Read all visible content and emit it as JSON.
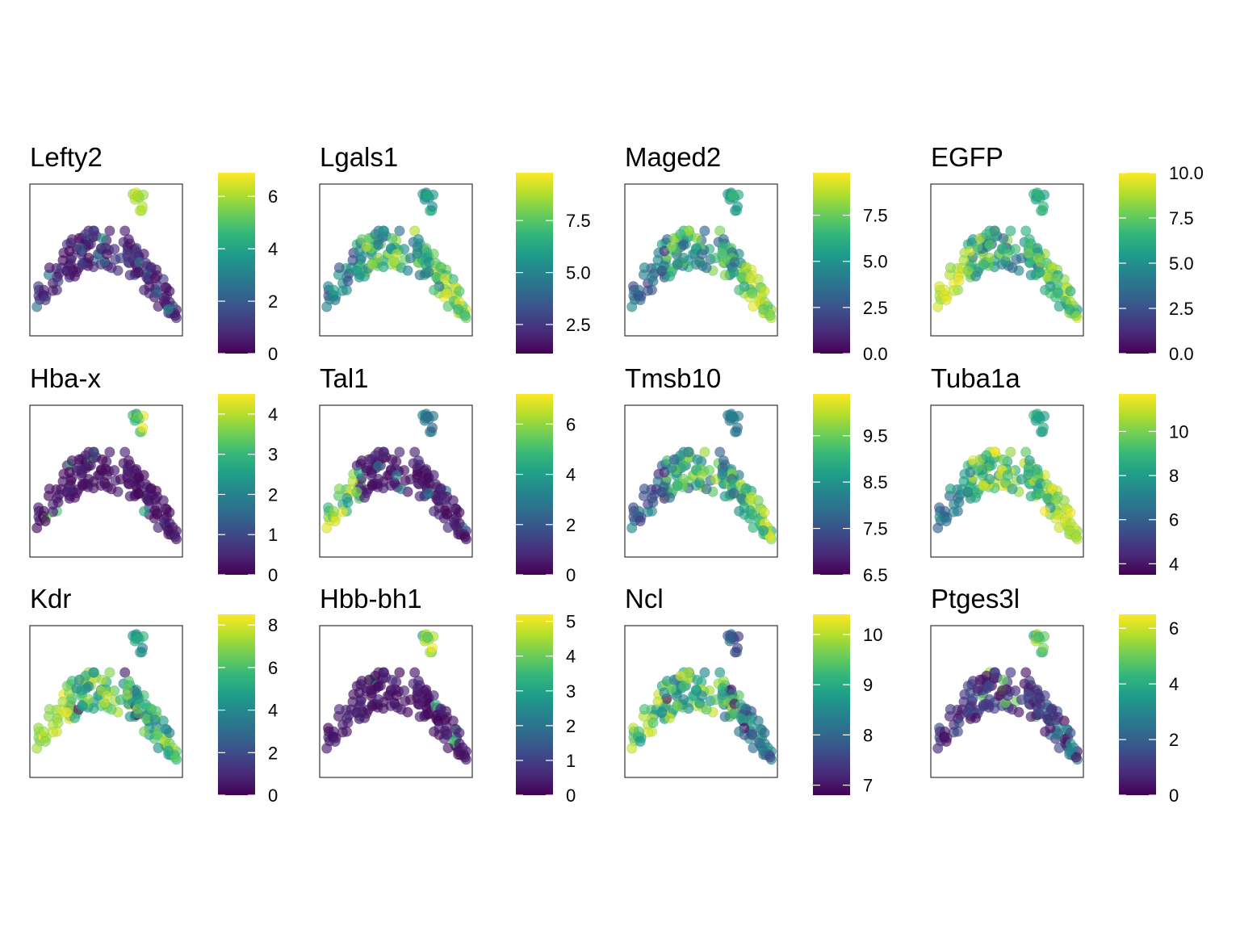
{
  "figure": {
    "colormap": "viridis",
    "colormap_stops": [
      "#440154",
      "#482878",
      "#3e4989",
      "#31688e",
      "#26828e",
      "#1f9e89",
      "#35b779",
      "#6ece58",
      "#b5de2b",
      "#fde725"
    ],
    "point_alpha": 0.65,
    "frame_color": "#333333",
    "axis_ticks_shown": false
  },
  "chart_data": [
    {
      "type": "scatter",
      "title": "Lefty2",
      "colorbar": {
        "range": [
          0,
          6.9
        ],
        "ticks": [
          0,
          2,
          4,
          6
        ],
        "tick_labels": [
          "0",
          "2",
          "4",
          "6"
        ]
      },
      "pattern": "lefty2"
    },
    {
      "type": "scatter",
      "title": "Lgals1",
      "colorbar": {
        "range": [
          1.1,
          9.8
        ],
        "ticks": [
          2.5,
          5.0,
          7.5
        ],
        "tick_labels": [
          "2.5",
          "5.0",
          "7.5"
        ]
      },
      "pattern": "lgals1"
    },
    {
      "type": "scatter",
      "title": "Maged2",
      "colorbar": {
        "range": [
          0,
          9.8
        ],
        "ticks": [
          0,
          2.5,
          5.0,
          7.5
        ],
        "tick_labels": [
          "0.0",
          "2.5",
          "5.0",
          "7.5"
        ]
      },
      "pattern": "maged2"
    },
    {
      "type": "scatter",
      "title": "EGFP",
      "colorbar": {
        "range": [
          0,
          10.0
        ],
        "ticks": [
          0,
          2.5,
          5.0,
          7.5,
          10.0
        ],
        "tick_labels": [
          "0.0",
          "2.5",
          "5.0",
          "7.5",
          "10.0"
        ]
      },
      "pattern": "egfp"
    },
    {
      "type": "scatter",
      "title": "Hba-x",
      "colorbar": {
        "range": [
          0,
          4.5
        ],
        "ticks": [
          0,
          1,
          2,
          3,
          4
        ],
        "tick_labels": [
          "0",
          "1",
          "2",
          "3",
          "4"
        ]
      },
      "pattern": "hbax"
    },
    {
      "type": "scatter",
      "title": "Tal1",
      "colorbar": {
        "range": [
          0,
          7.2
        ],
        "ticks": [
          0,
          2,
          4,
          6
        ],
        "tick_labels": [
          "0",
          "2",
          "4",
          "6"
        ]
      },
      "pattern": "tal1"
    },
    {
      "type": "scatter",
      "title": "Tmsb10",
      "colorbar": {
        "range": [
          6.5,
          10.4
        ],
        "ticks": [
          6.5,
          7.5,
          8.5,
          9.5
        ],
        "tick_labels": [
          "6.5",
          "7.5",
          "8.5",
          "9.5"
        ]
      },
      "pattern": "tmsb10"
    },
    {
      "type": "scatter",
      "title": "Tuba1a",
      "colorbar": {
        "range": [
          3.5,
          11.7
        ],
        "ticks": [
          4,
          6,
          8,
          10
        ],
        "tick_labels": [
          "4",
          "6",
          "8",
          "10"
        ]
      },
      "pattern": "tuba1a"
    },
    {
      "type": "scatter",
      "title": "Kdr",
      "colorbar": {
        "range": [
          0,
          8.5
        ],
        "ticks": [
          0,
          2,
          4,
          6,
          8
        ],
        "tick_labels": [
          "0",
          "2",
          "4",
          "6",
          "8"
        ]
      },
      "pattern": "kdr"
    },
    {
      "type": "scatter",
      "title": "Hbb-bh1",
      "colorbar": {
        "range": [
          0,
          5.2
        ],
        "ticks": [
          0,
          1,
          2,
          3,
          4,
          5
        ],
        "tick_labels": [
          "0",
          "1",
          "2",
          "3",
          "4",
          "5"
        ]
      },
      "pattern": "hbbbh1"
    },
    {
      "type": "scatter",
      "title": "Ncl",
      "colorbar": {
        "range": [
          6.8,
          10.4
        ],
        "ticks": [
          7,
          8,
          9,
          10
        ],
        "tick_labels": [
          "7",
          "8",
          "9",
          "10"
        ]
      },
      "pattern": "ncl"
    },
    {
      "type": "scatter",
      "title": "Ptges3l",
      "colorbar": {
        "range": [
          0,
          6.5
        ],
        "ticks": [
          0,
          2,
          4,
          6
        ],
        "tick_labels": [
          "0",
          "2",
          "4",
          "6"
        ]
      },
      "pattern": "ptges3l"
    }
  ]
}
